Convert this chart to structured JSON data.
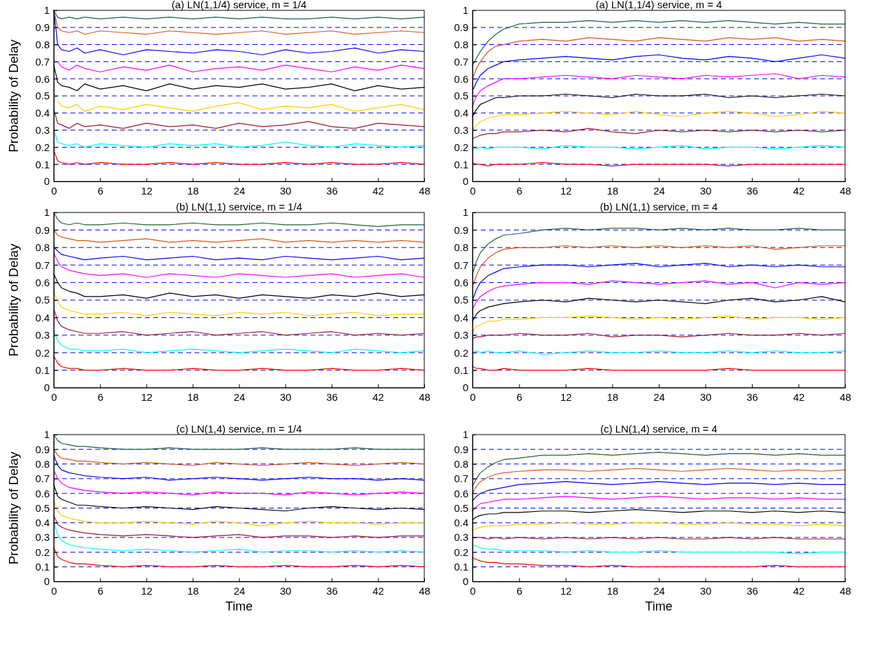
{
  "chart_data": [
    {
      "type": "line",
      "title": "(a) LN(1,1/4) service, m = 1/4",
      "ylabel": "Probability of Delay",
      "x": [
        0,
        0.5,
        1,
        2,
        3,
        4,
        6,
        9,
        12,
        15,
        18,
        21,
        24,
        27,
        30,
        33,
        36,
        39,
        42,
        45,
        48
      ],
      "xlim": [
        0,
        48
      ],
      "xticks": [
        0,
        6,
        12,
        18,
        24,
        30,
        36,
        42,
        48
      ],
      "ylim": [
        0,
        1
      ],
      "yticks": [
        0,
        0.1,
        0.2,
        0.3,
        0.4,
        0.5,
        0.6,
        0.7,
        0.8,
        0.9,
        1
      ],
      "line_style": "solid",
      "ref_lines": [
        {
          "axis": "y",
          "value": 0.1,
          "color": "#0000ff",
          "line_style": "dashed"
        },
        {
          "axis": "y",
          "value": 0.2,
          "color": "#0000ff",
          "line_style": "dashed"
        },
        {
          "axis": "y",
          "value": 0.3,
          "color": "#0000ff",
          "line_style": "dashed"
        },
        {
          "axis": "y",
          "value": 0.4,
          "color": "#0000ff",
          "line_style": "dashed"
        },
        {
          "axis": "y",
          "value": 0.5,
          "color": "#0000ff",
          "line_style": "dashed"
        },
        {
          "axis": "y",
          "value": 0.6,
          "color": "#0000ff",
          "line_style": "dashed"
        },
        {
          "axis": "y",
          "value": 0.7,
          "color": "#0000ff",
          "line_style": "dashed"
        },
        {
          "axis": "y",
          "value": 0.8,
          "color": "#0000ff",
          "line_style": "dashed"
        },
        {
          "axis": "y",
          "value": 0.9,
          "color": "#0000ff",
          "line_style": "dashed"
        }
      ],
      "series": [
        {
          "color": "#1f5f3f",
          "values": [
            1,
            0.96,
            0.95,
            0.96,
            0.95,
            0.96,
            0.95,
            0.96,
            0.95,
            0.96,
            0.95,
            0.96,
            0.95,
            0.96,
            0.95,
            0.95,
            0.96,
            0.95,
            0.96,
            0.95,
            0.96
          ]
        },
        {
          "color": "#d95319",
          "values": [
            1,
            0.9,
            0.88,
            0.87,
            0.88,
            0.86,
            0.88,
            0.87,
            0.86,
            0.88,
            0.87,
            0.86,
            0.87,
            0.88,
            0.86,
            0.87,
            0.88,
            0.86,
            0.87,
            0.88,
            0.87
          ]
        },
        {
          "color": "#0000ff",
          "values": [
            1,
            0.8,
            0.77,
            0.76,
            0.78,
            0.75,
            0.77,
            0.74,
            0.77,
            0.76,
            0.75,
            0.77,
            0.76,
            0.74,
            0.77,
            0.75,
            0.76,
            0.78,
            0.75,
            0.77,
            0.76
          ]
        },
        {
          "color": "#ff00ff",
          "values": [
            null,
            0.7,
            0.67,
            0.65,
            0.68,
            0.66,
            0.64,
            0.67,
            0.65,
            0.68,
            0.64,
            0.66,
            0.67,
            0.65,
            0.68,
            0.66,
            0.64,
            0.67,
            0.65,
            0.68,
            0.66
          ]
        },
        {
          "color": "#000000",
          "values": [
            0.68,
            0.58,
            0.56,
            0.55,
            0.53,
            0.57,
            0.54,
            0.56,
            0.53,
            0.57,
            0.54,
            0.56,
            0.55,
            0.57,
            0.54,
            0.55,
            0.57,
            0.53,
            0.56,
            0.54,
            0.55
          ]
        },
        {
          "color": "#ffcc00",
          "values": [
            null,
            0.47,
            0.44,
            0.43,
            0.45,
            0.41,
            0.44,
            0.42,
            0.45,
            0.43,
            0.41,
            0.44,
            0.46,
            0.42,
            0.44,
            0.43,
            0.45,
            0.41,
            0.43,
            0.45,
            0.42
          ]
        },
        {
          "color": "#a2142f",
          "values": [
            0.42,
            0.34,
            0.33,
            0.31,
            0.34,
            0.32,
            0.33,
            0.31,
            0.34,
            0.32,
            0.33,
            0.31,
            0.34,
            0.32,
            0.33,
            0.35,
            0.32,
            0.31,
            0.34,
            0.33,
            0.32
          ]
        },
        {
          "color": "#00ffff",
          "values": [
            0.3,
            0.23,
            0.22,
            0.21,
            0.22,
            0.2,
            0.22,
            0.21,
            0.2,
            0.22,
            0.21,
            0.22,
            0.2,
            0.21,
            0.23,
            0.21,
            0.2,
            0.22,
            0.21,
            0.2,
            0.21
          ]
        },
        {
          "color": "#ff0000",
          "values": [
            0.18,
            0.12,
            0.11,
            0.1,
            0.11,
            0.1,
            0.11,
            0.1,
            0.1,
            0.11,
            0.1,
            0.11,
            0.1,
            0.1,
            0.11,
            0.1,
            0.11,
            0.1,
            0.1,
            0.11,
            0.1
          ]
        }
      ]
    },
    {
      "type": "line",
      "title": "(a) LN(1,1/4) service, m = 4",
      "x": [
        0,
        0.5,
        1,
        2,
        3,
        4,
        6,
        9,
        12,
        15,
        18,
        21,
        24,
        27,
        30,
        33,
        36,
        39,
        42,
        45,
        48
      ],
      "xlim": [
        0,
        48
      ],
      "xticks": [
        0,
        6,
        12,
        18,
        24,
        30,
        36,
        42,
        48
      ],
      "ylim": [
        0,
        1
      ],
      "yticks": [
        0,
        0.1,
        0.2,
        0.3,
        0.4,
        0.5,
        0.6,
        0.7,
        0.8,
        0.9,
        1
      ],
      "line_style": "solid",
      "ref_lines": [
        {
          "axis": "y",
          "value": 0.1,
          "color": "#0000ff",
          "line_style": "dashed"
        },
        {
          "axis": "y",
          "value": 0.2,
          "color": "#0000ff",
          "line_style": "dashed"
        },
        {
          "axis": "y",
          "value": 0.3,
          "color": "#0000ff",
          "line_style": "dashed"
        },
        {
          "axis": "y",
          "value": 0.4,
          "color": "#0000ff",
          "line_style": "dashed"
        },
        {
          "axis": "y",
          "value": 0.5,
          "color": "#0000ff",
          "line_style": "dashed"
        },
        {
          "axis": "y",
          "value": 0.6,
          "color": "#0000ff",
          "line_style": "dashed"
        },
        {
          "axis": "y",
          "value": 0.7,
          "color": "#0000ff",
          "line_style": "dashed"
        },
        {
          "axis": "y",
          "value": 0.8,
          "color": "#0000ff",
          "line_style": "dashed"
        },
        {
          "axis": "y",
          "value": 0.9,
          "color": "#0000ff",
          "line_style": "dashed"
        }
      ],
      "series": [
        {
          "color": "#1f5f3f",
          "values": [
            0.68,
            0.72,
            0.76,
            0.82,
            0.86,
            0.89,
            0.92,
            0.93,
            0.93,
            0.94,
            0.93,
            0.94,
            0.93,
            0.94,
            0.93,
            0.94,
            0.93,
            0.92,
            0.93,
            0.92,
            0.92
          ]
        },
        {
          "color": "#d95319",
          "values": [
            0.6,
            0.66,
            0.7,
            0.76,
            0.79,
            0.8,
            0.82,
            0.83,
            0.82,
            0.84,
            0.83,
            0.82,
            0.84,
            0.83,
            0.82,
            0.84,
            0.83,
            0.84,
            0.82,
            0.83,
            0.82
          ]
        },
        {
          "color": "#0000ff",
          "values": [
            0.53,
            0.58,
            0.62,
            0.66,
            0.68,
            0.7,
            0.71,
            0.72,
            0.73,
            0.72,
            0.71,
            0.73,
            0.74,
            0.72,
            0.71,
            0.73,
            0.72,
            0.7,
            0.72,
            0.74,
            0.72
          ]
        },
        {
          "color": "#ff00ff",
          "values": [
            0.44,
            0.5,
            0.53,
            0.56,
            0.58,
            0.6,
            0.6,
            0.61,
            0.62,
            0.61,
            0.6,
            0.62,
            0.61,
            0.6,
            0.62,
            0.61,
            0.62,
            0.63,
            0.6,
            0.62,
            0.61
          ]
        },
        {
          "color": "#000000",
          "values": [
            0.38,
            0.42,
            0.45,
            0.47,
            0.49,
            0.49,
            0.5,
            0.5,
            0.51,
            0.5,
            0.49,
            0.51,
            0.5,
            0.5,
            0.51,
            0.49,
            0.5,
            0.49,
            0.5,
            0.51,
            0.5
          ]
        },
        {
          "color": "#ffcc00",
          "values": [
            0.3,
            0.33,
            0.35,
            0.37,
            0.38,
            0.39,
            0.39,
            0.4,
            0.41,
            0.4,
            0.39,
            0.41,
            0.39,
            0.38,
            0.4,
            0.41,
            0.4,
            0.38,
            0.39,
            0.41,
            0.4
          ]
        },
        {
          "color": "#a2142f",
          "values": [
            0.25,
            0.26,
            0.27,
            0.28,
            0.28,
            0.29,
            0.29,
            0.3,
            0.29,
            0.31,
            0.29,
            0.28,
            0.3,
            0.29,
            0.3,
            0.29,
            0.3,
            0.29,
            0.3,
            0.29,
            0.3
          ]
        },
        {
          "color": "#00ffff",
          "values": [
            0.19,
            0.19,
            0.2,
            0.19,
            0.2,
            0.2,
            0.2,
            0.19,
            0.21,
            0.2,
            0.2,
            0.19,
            0.2,
            0.21,
            0.19,
            0.2,
            0.2,
            0.19,
            0.2,
            0.21,
            0.2
          ]
        },
        {
          "color": "#ff0000",
          "values": [
            0.11,
            0.1,
            0.1,
            0.09,
            0.1,
            0.1,
            0.1,
            0.11,
            0.1,
            0.1,
            0.09,
            0.1,
            0.1,
            0.1,
            0.1,
            0.09,
            0.1,
            0.1,
            0.1,
            0.1,
            0.1
          ]
        }
      ]
    },
    {
      "type": "line",
      "title": "(b) LN(1,1) service, m = 1/4",
      "ylabel": "Probability of Delay",
      "x": [
        0,
        0.5,
        1,
        2,
        3,
        4,
        6,
        9,
        12,
        15,
        18,
        21,
        24,
        27,
        30,
        33,
        36,
        39,
        42,
        45,
        48
      ],
      "xlim": [
        0,
        48
      ],
      "xticks": [
        0,
        6,
        12,
        18,
        24,
        30,
        36,
        42,
        48
      ],
      "ylim": [
        0,
        1
      ],
      "yticks": [
        0,
        0.1,
        0.2,
        0.3,
        0.4,
        0.5,
        0.6,
        0.7,
        0.8,
        0.9,
        1
      ],
      "line_style": "solid",
      "ref_lines": [
        {
          "axis": "y",
          "value": 0.1,
          "color": "#0000ff",
          "line_style": "dashed"
        },
        {
          "axis": "y",
          "value": 0.2,
          "color": "#0000ff",
          "line_style": "dashed"
        },
        {
          "axis": "y",
          "value": 0.3,
          "color": "#0000ff",
          "line_style": "dashed"
        },
        {
          "axis": "y",
          "value": 0.4,
          "color": "#0000ff",
          "line_style": "dashed"
        },
        {
          "axis": "y",
          "value": 0.5,
          "color": "#0000ff",
          "line_style": "dashed"
        },
        {
          "axis": "y",
          "value": 0.6,
          "color": "#0000ff",
          "line_style": "dashed"
        },
        {
          "axis": "y",
          "value": 0.7,
          "color": "#0000ff",
          "line_style": "dashed"
        },
        {
          "axis": "y",
          "value": 0.8,
          "color": "#0000ff",
          "line_style": "dashed"
        },
        {
          "axis": "y",
          "value": 0.9,
          "color": "#0000ff",
          "line_style": "dashed"
        }
      ],
      "series": [
        {
          "color": "#1f5f3f",
          "values": [
            1,
            0.96,
            0.94,
            0.93,
            0.94,
            0.93,
            0.93,
            0.94,
            0.93,
            0.93,
            0.94,
            0.93,
            0.93,
            0.94,
            0.93,
            0.93,
            0.94,
            0.93,
            0.92,
            0.93,
            0.93
          ]
        },
        {
          "color": "#d95319",
          "values": [
            0.9,
            0.87,
            0.86,
            0.85,
            0.84,
            0.84,
            0.83,
            0.84,
            0.85,
            0.83,
            0.84,
            0.83,
            0.84,
            0.85,
            0.83,
            0.84,
            0.83,
            0.84,
            0.83,
            0.84,
            0.83
          ]
        },
        {
          "color": "#0000ff",
          "values": [
            0.8,
            0.78,
            0.76,
            0.75,
            0.74,
            0.73,
            0.74,
            0.75,
            0.73,
            0.74,
            0.75,
            0.73,
            0.74,
            0.73,
            0.75,
            0.74,
            0.73,
            0.74,
            0.75,
            0.73,
            0.74
          ]
        },
        {
          "color": "#ff00ff",
          "values": [
            0.77,
            0.72,
            0.69,
            0.67,
            0.66,
            0.65,
            0.64,
            0.65,
            0.63,
            0.65,
            0.64,
            0.63,
            0.65,
            0.64,
            0.63,
            0.64,
            0.65,
            0.63,
            0.64,
            0.65,
            0.63
          ]
        },
        {
          "color": "#000000",
          "values": [
            0.65,
            0.6,
            0.57,
            0.55,
            0.54,
            0.52,
            0.52,
            0.53,
            0.51,
            0.54,
            0.52,
            0.53,
            0.51,
            0.53,
            0.52,
            0.51,
            0.53,
            0.52,
            0.54,
            0.52,
            0.53
          ]
        },
        {
          "color": "#ffcc00",
          "values": [
            0.55,
            0.49,
            0.46,
            0.44,
            0.43,
            0.42,
            0.42,
            0.43,
            0.41,
            0.43,
            0.42,
            0.41,
            0.43,
            0.42,
            0.43,
            0.41,
            0.42,
            0.43,
            0.41,
            0.42,
            0.42
          ]
        },
        {
          "color": "#a2142f",
          "values": [
            0.45,
            0.38,
            0.35,
            0.33,
            0.32,
            0.31,
            0.31,
            0.32,
            0.3,
            0.31,
            0.32,
            0.3,
            0.31,
            0.32,
            0.3,
            0.31,
            0.32,
            0.3,
            0.31,
            0.3,
            0.31
          ]
        },
        {
          "color": "#00ffff",
          "values": [
            0.32,
            0.27,
            0.24,
            0.22,
            0.22,
            0.21,
            0.21,
            0.22,
            0.2,
            0.21,
            0.22,
            0.21,
            0.2,
            0.21,
            0.22,
            0.21,
            0.2,
            0.22,
            0.21,
            0.2,
            0.21
          ]
        },
        {
          "color": "#ff0000",
          "values": [
            0.18,
            0.14,
            0.12,
            0.11,
            0.11,
            0.1,
            0.1,
            0.11,
            0.1,
            0.1,
            0.11,
            0.1,
            0.1,
            0.11,
            0.1,
            0.1,
            0.11,
            0.1,
            0.1,
            0.11,
            0.1
          ]
        }
      ]
    },
    {
      "type": "line",
      "title": "(b) LN(1,1) service, m = 4",
      "x": [
        0,
        0.5,
        1,
        2,
        3,
        4,
        6,
        9,
        12,
        15,
        18,
        21,
        24,
        27,
        30,
        33,
        36,
        39,
        42,
        45,
        48
      ],
      "xlim": [
        0,
        48
      ],
      "xticks": [
        0,
        6,
        12,
        18,
        24,
        30,
        36,
        42,
        48
      ],
      "ylim": [
        0,
        1
      ],
      "yticks": [
        0,
        0.1,
        0.2,
        0.3,
        0.4,
        0.5,
        0.6,
        0.7,
        0.8,
        0.9,
        1
      ],
      "line_style": "solid",
      "ref_lines": [
        {
          "axis": "y",
          "value": 0.1,
          "color": "#0000ff",
          "line_style": "dashed"
        },
        {
          "axis": "y",
          "value": 0.2,
          "color": "#0000ff",
          "line_style": "dashed"
        },
        {
          "axis": "y",
          "value": 0.3,
          "color": "#0000ff",
          "line_style": "dashed"
        },
        {
          "axis": "y",
          "value": 0.4,
          "color": "#0000ff",
          "line_style": "dashed"
        },
        {
          "axis": "y",
          "value": 0.5,
          "color": "#0000ff",
          "line_style": "dashed"
        },
        {
          "axis": "y",
          "value": 0.6,
          "color": "#0000ff",
          "line_style": "dashed"
        },
        {
          "axis": "y",
          "value": 0.7,
          "color": "#0000ff",
          "line_style": "dashed"
        },
        {
          "axis": "y",
          "value": 0.8,
          "color": "#0000ff",
          "line_style": "dashed"
        },
        {
          "axis": "y",
          "value": 0.9,
          "color": "#0000ff",
          "line_style": "dashed"
        }
      ],
      "series": [
        {
          "color": "#1f5f3f",
          "values": [
            0.65,
            0.72,
            0.77,
            0.82,
            0.85,
            0.87,
            0.88,
            0.9,
            0.91,
            0.9,
            0.91,
            0.91,
            0.9,
            0.91,
            0.9,
            0.91,
            0.9,
            0.9,
            0.91,
            0.9,
            0.9
          ]
        },
        {
          "color": "#d95319",
          "values": [
            0.58,
            0.64,
            0.69,
            0.74,
            0.77,
            0.79,
            0.8,
            0.8,
            0.81,
            0.8,
            0.81,
            0.8,
            0.81,
            0.8,
            0.81,
            0.8,
            0.81,
            0.79,
            0.8,
            0.81,
            0.81
          ]
        },
        {
          "color": "#0000ff",
          "values": [
            0.5,
            0.56,
            0.6,
            0.64,
            0.66,
            0.68,
            0.69,
            0.7,
            0.7,
            0.69,
            0.7,
            0.71,
            0.69,
            0.7,
            0.71,
            0.69,
            0.7,
            0.69,
            0.7,
            0.69,
            0.69
          ]
        },
        {
          "color": "#ff00ff",
          "values": [
            0.45,
            0.49,
            0.52,
            0.55,
            0.57,
            0.58,
            0.59,
            0.6,
            0.6,
            0.59,
            0.61,
            0.6,
            0.59,
            0.6,
            0.61,
            0.59,
            0.6,
            0.57,
            0.6,
            0.59,
            0.6
          ]
        },
        {
          "color": "#000000",
          "values": [
            0.38,
            0.42,
            0.44,
            0.46,
            0.47,
            0.48,
            0.49,
            0.5,
            0.49,
            0.51,
            0.5,
            0.49,
            0.5,
            0.49,
            0.48,
            0.5,
            0.51,
            0.49,
            0.5,
            0.52,
            0.49
          ]
        },
        {
          "color": "#ffcc00",
          "values": [
            0.32,
            0.35,
            0.36,
            0.38,
            0.38,
            0.39,
            0.39,
            0.4,
            0.4,
            0.41,
            0.4,
            0.39,
            0.4,
            0.39,
            0.4,
            0.41,
            0.39,
            0.4,
            0.4,
            0.39,
            0.4
          ]
        },
        {
          "color": "#a2142f",
          "values": [
            0.28,
            0.29,
            0.29,
            0.3,
            0.3,
            0.3,
            0.31,
            0.3,
            0.3,
            0.31,
            0.29,
            0.3,
            0.3,
            0.29,
            0.3,
            0.31,
            0.3,
            0.3,
            0.31,
            0.3,
            0.31
          ]
        },
        {
          "color": "#00ffff",
          "values": [
            0.2,
            0.21,
            0.2,
            0.21,
            0.2,
            0.2,
            0.21,
            0.19,
            0.2,
            0.21,
            0.2,
            0.2,
            0.21,
            0.2,
            0.2,
            0.21,
            0.2,
            0.21,
            0.2,
            0.2,
            0.21
          ]
        },
        {
          "color": "#ff0000",
          "values": [
            0.12,
            0.11,
            0.11,
            0.1,
            0.1,
            0.11,
            0.1,
            0.1,
            0.1,
            0.11,
            0.1,
            0.1,
            0.1,
            0.1,
            0.1,
            0.11,
            0.1,
            0.1,
            0.1,
            0.1,
            0.1
          ]
        }
      ]
    },
    {
      "type": "line",
      "title": "(c) LN(1,4) service, m = 1/4",
      "xlabel": "Time",
      "ylabel": "Probability of Delay",
      "x": [
        0,
        0.5,
        1,
        2,
        3,
        4,
        6,
        9,
        12,
        15,
        18,
        21,
        24,
        27,
        30,
        33,
        36,
        39,
        42,
        45,
        48
      ],
      "xlim": [
        0,
        48
      ],
      "xticks": [
        0,
        6,
        12,
        18,
        24,
        30,
        36,
        42,
        48
      ],
      "ylim": [
        0,
        1
      ],
      "yticks": [
        0,
        0.1,
        0.2,
        0.3,
        0.4,
        0.5,
        0.6,
        0.7,
        0.8,
        0.9,
        1
      ],
      "line_style": "solid",
      "ref_lines": [
        {
          "axis": "y",
          "value": 0.1,
          "color": "#0000ff",
          "line_style": "dashed"
        },
        {
          "axis": "y",
          "value": 0.2,
          "color": "#0000ff",
          "line_style": "dashed"
        },
        {
          "axis": "y",
          "value": 0.3,
          "color": "#0000ff",
          "line_style": "dashed"
        },
        {
          "axis": "y",
          "value": 0.4,
          "color": "#0000ff",
          "line_style": "dashed"
        },
        {
          "axis": "y",
          "value": 0.5,
          "color": "#0000ff",
          "line_style": "dashed"
        },
        {
          "axis": "y",
          "value": 0.6,
          "color": "#0000ff",
          "line_style": "dashed"
        },
        {
          "axis": "y",
          "value": 0.7,
          "color": "#0000ff",
          "line_style": "dashed"
        },
        {
          "axis": "y",
          "value": 0.8,
          "color": "#0000ff",
          "line_style": "dashed"
        },
        {
          "axis": "y",
          "value": 0.9,
          "color": "#0000ff",
          "line_style": "dashed"
        }
      ],
      "series": [
        {
          "color": "#1f5f3f",
          "values": [
            1,
            0.96,
            0.94,
            0.93,
            0.92,
            0.92,
            0.91,
            0.9,
            0.9,
            0.91,
            0.9,
            0.9,
            0.9,
            0.91,
            0.9,
            0.9,
            0.9,
            0.91,
            0.9,
            0.9,
            0.9
          ]
        },
        {
          "color": "#d95319",
          "values": [
            0.9,
            0.86,
            0.84,
            0.83,
            0.82,
            0.82,
            0.81,
            0.8,
            0.81,
            0.8,
            0.79,
            0.81,
            0.8,
            0.79,
            0.8,
            0.81,
            0.8,
            0.79,
            0.8,
            0.81,
            0.8
          ]
        },
        {
          "color": "#0000ff",
          "values": [
            0.86,
            0.79,
            0.76,
            0.74,
            0.73,
            0.72,
            0.71,
            0.7,
            0.71,
            0.69,
            0.7,
            0.71,
            0.7,
            0.69,
            0.7,
            0.71,
            0.7,
            0.7,
            0.69,
            0.7,
            0.69
          ]
        },
        {
          "color": "#ff00ff",
          "values": [
            0.76,
            0.7,
            0.67,
            0.64,
            0.63,
            0.62,
            0.61,
            0.6,
            0.61,
            0.6,
            0.59,
            0.61,
            0.6,
            0.6,
            0.59,
            0.61,
            0.6,
            0.59,
            0.6,
            0.61,
            0.6
          ]
        },
        {
          "color": "#000000",
          "values": [
            0.66,
            0.58,
            0.56,
            0.54,
            0.52,
            0.52,
            0.51,
            0.5,
            0.51,
            0.5,
            0.49,
            0.51,
            0.5,
            0.49,
            0.48,
            0.5,
            0.51,
            0.5,
            0.49,
            0.5,
            0.49
          ]
        },
        {
          "color": "#ffcc00",
          "values": [
            0.55,
            0.48,
            0.45,
            0.43,
            0.42,
            0.41,
            0.4,
            0.4,
            0.41,
            0.4,
            0.39,
            0.41,
            0.4,
            0.38,
            0.4,
            0.41,
            0.4,
            0.4,
            0.39,
            0.4,
            0.4
          ]
        },
        {
          "color": "#a2142f",
          "values": [
            0.45,
            0.39,
            0.37,
            0.35,
            0.34,
            0.33,
            0.32,
            0.31,
            0.32,
            0.31,
            0.3,
            0.31,
            0.32,
            0.3,
            0.31,
            0.31,
            0.3,
            0.31,
            0.3,
            0.31,
            0.31
          ]
        },
        {
          "color": "#00ffff",
          "values": [
            0.4,
            0.32,
            0.28,
            0.25,
            0.24,
            0.23,
            0.22,
            0.21,
            0.22,
            0.21,
            0.2,
            0.21,
            0.22,
            0.2,
            0.21,
            0.21,
            0.2,
            0.21,
            0.2,
            0.21,
            0.2
          ]
        },
        {
          "color": "#ff0000",
          "values": [
            0.23,
            0.17,
            0.15,
            0.13,
            0.12,
            0.12,
            0.11,
            0.1,
            0.11,
            0.1,
            0.1,
            0.11,
            0.1,
            0.1,
            0.11,
            0.1,
            0.1,
            0.11,
            0.1,
            0.11,
            0.1
          ]
        }
      ]
    },
    {
      "type": "line",
      "title": "(c) LN(1,4) service, m = 4",
      "xlabel": "Time",
      "x": [
        0,
        0.5,
        1,
        2,
        3,
        4,
        6,
        9,
        12,
        15,
        18,
        21,
        24,
        27,
        30,
        33,
        36,
        39,
        42,
        45,
        48
      ],
      "xlim": [
        0,
        48
      ],
      "xticks": [
        0,
        6,
        12,
        18,
        24,
        30,
        36,
        42,
        48
      ],
      "ylim": [
        0,
        1
      ],
      "yticks": [
        0,
        0.1,
        0.2,
        0.3,
        0.4,
        0.5,
        0.6,
        0.7,
        0.8,
        0.9,
        1
      ],
      "line_style": "solid",
      "ref_lines": [
        {
          "axis": "y",
          "value": 0.1,
          "color": "#0000ff",
          "line_style": "dashed"
        },
        {
          "axis": "y",
          "value": 0.2,
          "color": "#0000ff",
          "line_style": "dashed"
        },
        {
          "axis": "y",
          "value": 0.3,
          "color": "#0000ff",
          "line_style": "dashed"
        },
        {
          "axis": "y",
          "value": 0.4,
          "color": "#0000ff",
          "line_style": "dashed"
        },
        {
          "axis": "y",
          "value": 0.5,
          "color": "#0000ff",
          "line_style": "dashed"
        },
        {
          "axis": "y",
          "value": 0.6,
          "color": "#0000ff",
          "line_style": "dashed"
        },
        {
          "axis": "y",
          "value": 0.7,
          "color": "#0000ff",
          "line_style": "dashed"
        },
        {
          "axis": "y",
          "value": 0.8,
          "color": "#0000ff",
          "line_style": "dashed"
        },
        {
          "axis": "y",
          "value": 0.9,
          "color": "#0000ff",
          "line_style": "dashed"
        }
      ],
      "series": [
        {
          "color": "#1f5f3f",
          "values": [
            0.65,
            0.7,
            0.74,
            0.78,
            0.81,
            0.83,
            0.84,
            0.86,
            0.86,
            0.87,
            0.86,
            0.87,
            0.88,
            0.87,
            0.86,
            0.87,
            0.87,
            0.86,
            0.87,
            0.86,
            0.86
          ]
        },
        {
          "color": "#d95319",
          "values": [
            0.6,
            0.65,
            0.68,
            0.71,
            0.73,
            0.74,
            0.75,
            0.76,
            0.76,
            0.75,
            0.76,
            0.77,
            0.76,
            0.75,
            0.76,
            0.77,
            0.76,
            0.75,
            0.76,
            0.75,
            0.76
          ]
        },
        {
          "color": "#0000ff",
          "values": [
            0.55,
            0.58,
            0.6,
            0.62,
            0.63,
            0.64,
            0.66,
            0.67,
            0.68,
            0.67,
            0.66,
            0.67,
            0.68,
            0.67,
            0.66,
            0.67,
            0.67,
            0.66,
            0.67,
            0.66,
            0.66
          ]
        },
        {
          "color": "#ff00ff",
          "values": [
            0.48,
            0.51,
            0.53,
            0.54,
            0.55,
            0.56,
            0.56,
            0.57,
            0.58,
            0.57,
            0.56,
            0.57,
            0.58,
            0.57,
            0.56,
            0.57,
            0.57,
            0.56,
            0.57,
            0.56,
            0.56
          ]
        },
        {
          "color": "#000000",
          "values": [
            0.42,
            0.44,
            0.45,
            0.46,
            0.46,
            0.47,
            0.47,
            0.48,
            0.48,
            0.47,
            0.48,
            0.49,
            0.48,
            0.47,
            0.48,
            0.48,
            0.47,
            0.48,
            0.47,
            0.48,
            0.47
          ]
        },
        {
          "color": "#ffcc00",
          "values": [
            0.35,
            0.36,
            0.37,
            0.38,
            0.38,
            0.38,
            0.39,
            0.39,
            0.4,
            0.39,
            0.39,
            0.4,
            0.4,
            0.39,
            0.39,
            0.4,
            0.39,
            0.39,
            0.38,
            0.39,
            0.38
          ]
        },
        {
          "color": "#a2142f",
          "values": [
            0.3,
            0.3,
            0.3,
            0.29,
            0.3,
            0.29,
            0.3,
            0.29,
            0.3,
            0.29,
            0.3,
            0.29,
            0.3,
            0.29,
            0.29,
            0.3,
            0.29,
            0.3,
            0.29,
            0.29,
            0.29
          ]
        },
        {
          "color": "#00ffff",
          "values": [
            0.25,
            0.24,
            0.23,
            0.22,
            0.22,
            0.21,
            0.21,
            0.21,
            0.2,
            0.21,
            0.2,
            0.2,
            0.21,
            0.2,
            0.2,
            0.2,
            0.2,
            0.2,
            0.19,
            0.2,
            0.2
          ]
        },
        {
          "color": "#ff0000",
          "values": [
            0.16,
            0.15,
            0.14,
            0.13,
            0.13,
            0.12,
            0.12,
            0.11,
            0.11,
            0.1,
            0.11,
            0.1,
            0.1,
            0.1,
            0.1,
            0.1,
            0.1,
            0.11,
            0.1,
            0.1,
            0.1
          ]
        }
      ]
    }
  ]
}
